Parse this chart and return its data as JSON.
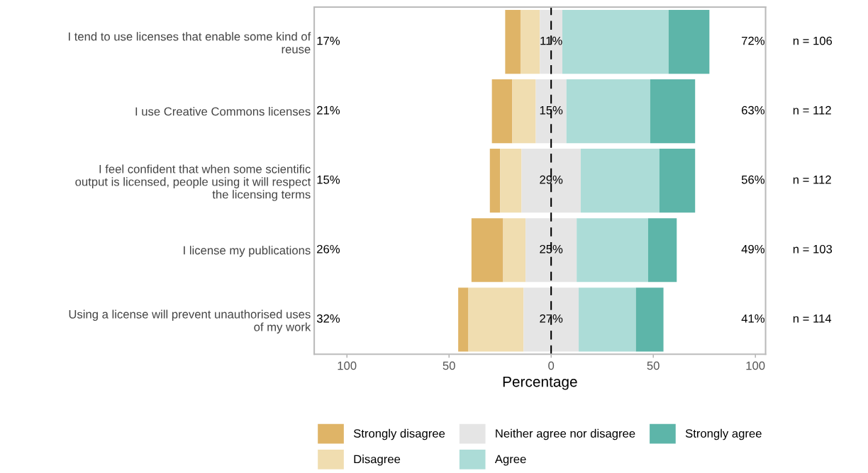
{
  "chart_data": {
    "type": "bar",
    "orientation": "horizontal",
    "categories": [
      "I tend to use licenses that enable some kind of reuse",
      "I use Creative Commons licenses",
      "I feel confident that when some scientific output is licensed, people using it will respect the licensing terms",
      "I license my publications",
      "Using a license will prevent unauthorised uses of my work"
    ],
    "series": [
      {
        "name": "Strongly disagree",
        "color": "#dfb467",
        "base": [
          -22.5,
          -29,
          -30,
          -39,
          -45.5
        ],
        "values": [
          7.5,
          10,
          5,
          15.5,
          5
        ]
      },
      {
        "name": "Disagree",
        "color": "#f0ddb0",
        "base": [
          -15,
          -19,
          -25,
          -23.5,
          -40.5
        ],
        "values": [
          9.5,
          11.5,
          10.5,
          11,
          27
        ]
      },
      {
        "name": "Neither agree nor disagree",
        "color": "#e5e5e5",
        "base": [
          -5.5,
          -7.5,
          -14.5,
          -12.5,
          -13.5
        ],
        "values": [
          11,
          15,
          29,
          25,
          27
        ],
        "value_labels": [
          "11%",
          "15%",
          "29%",
          "25%",
          "27%"
        ]
      },
      {
        "name": "Agree",
        "color": "#acdcd7",
        "base": [
          5.5,
          7.5,
          14.5,
          12.5,
          13.5
        ],
        "values": [
          52,
          41,
          38.5,
          35,
          28
        ]
      },
      {
        "name": "Strongly agree",
        "color": "#5db5a9",
        "base": [
          57.5,
          48.5,
          53,
          47.5,
          41.5
        ],
        "values": [
          20,
          22,
          17.5,
          14,
          13.5
        ]
      }
    ],
    "xlabel": "Percentage",
    "xlim": [
      -116,
      105
    ],
    "xticks": [
      {
        "value": -100,
        "label": "100"
      },
      {
        "value": -50,
        "label": "50"
      },
      0,
      50,
      100
    ],
    "ref_lines": [
      {
        "axis": "x",
        "value": 0,
        "color": "#000000",
        "line_style": "dashed"
      }
    ],
    "annotations": [
      "17%",
      "72%",
      "21%",
      "63%",
      "15%",
      "56%",
      "26%",
      "49%",
      "32%",
      "41%",
      "n = 106",
      "n = 112",
      "n = 112",
      "n = 103",
      "n = 114"
    ],
    "legend": "bottom"
  }
}
